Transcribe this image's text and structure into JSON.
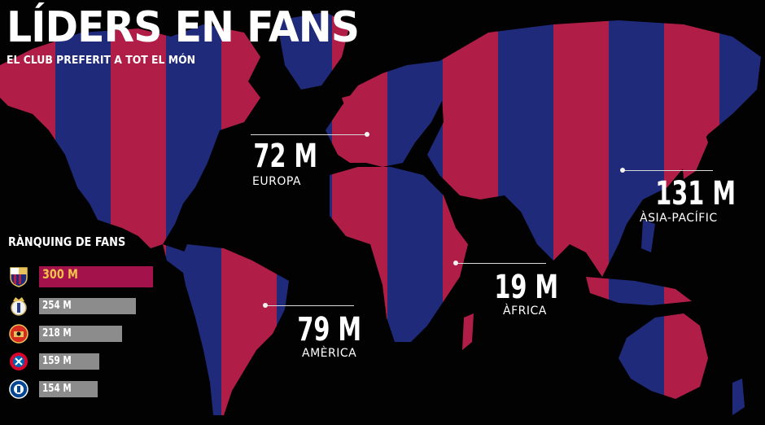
{
  "header": {
    "title": "LÍDERS EN FANS",
    "subtitle": "EL CLUB PREFERIT A TOT EL MÓN"
  },
  "colors": {
    "blaugrana_red": "#b01e47",
    "blaugrana_blue": "#1f2a7a",
    "background": "#020203",
    "top_bar": "#a3124a",
    "other_bar": "#8c8c8c"
  },
  "regions": [
    {
      "id": "europa",
      "value": "72 M",
      "label": "EUROPA"
    },
    {
      "id": "america",
      "value": "79 M",
      "label": "AMÈRICA"
    },
    {
      "id": "africa",
      "value": "19 M",
      "label": "ÀFRICA"
    },
    {
      "id": "asia",
      "value": "131 M",
      "label": "ÀSIA-PACÍFIC"
    }
  ],
  "ranking": {
    "title": "RÀNQUING DE FANS",
    "items": [
      {
        "crest": "fc-barcelona-crest-icon",
        "label": "300 M",
        "fans_millions": 300
      },
      {
        "crest": "real-madrid-crest-icon",
        "label": "254 M",
        "fans_millions": 254
      },
      {
        "crest": "manchester-united-crest-icon",
        "label": "218 M",
        "fans_millions": 218
      },
      {
        "crest": "bayern-munich-crest-icon",
        "label": "159 M",
        "fans_millions": 159
      },
      {
        "crest": "chelsea-crest-icon",
        "label": "154 M",
        "fans_millions": 154
      }
    ]
  }
}
